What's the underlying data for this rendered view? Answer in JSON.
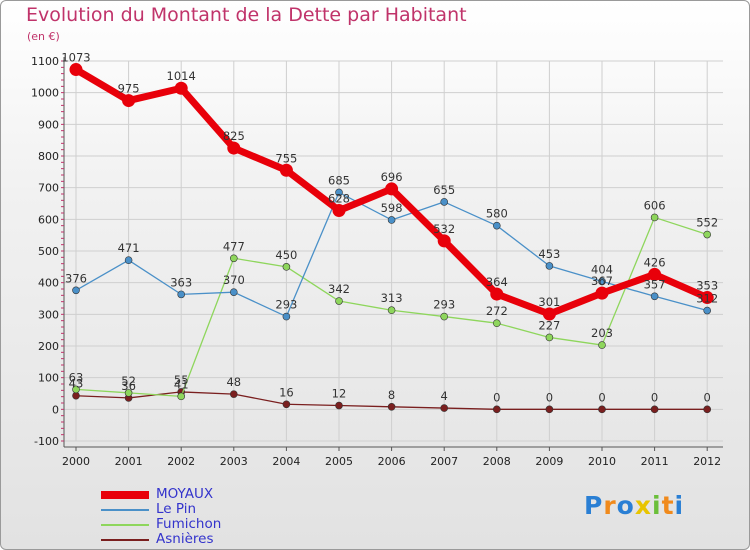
{
  "chart_data": {
    "type": "line",
    "title": "Evolution du Montant de la Dette par Habitant",
    "unit": "(en €)",
    "categories": [
      "2000",
      "2001",
      "2002",
      "2003",
      "2004",
      "2005",
      "2006",
      "2007",
      "2008",
      "2009",
      "2010",
      "2011",
      "2012"
    ],
    "ylim": [
      -100,
      1100
    ],
    "yticks": [
      "-100",
      "0",
      "100",
      "200",
      "300",
      "400",
      "500",
      "600",
      "700",
      "800",
      "900",
      "1000",
      "1100"
    ],
    "grid": true,
    "legend_position": "bottom-left",
    "series": [
      {
        "name": "MOYAUX",
        "color": "#e8000a",
        "text_color": "#3333cc",
        "values": [
          1073,
          975,
          1014,
          825,
          755,
          628,
          696,
          532,
          364,
          301,
          367,
          426,
          353
        ],
        "labels": [
          "1073",
          "975",
          "1014",
          "825",
          "755",
          "628",
          "696",
          "532",
          "364",
          "301",
          "367",
          "426",
          "353"
        ]
      },
      {
        "name": "Le Pin",
        "color": "#4a90c8",
        "text_color": "#3333cc",
        "values": [
          376,
          471,
          363,
          370,
          293,
          685,
          598,
          655,
          580,
          453,
          404,
          357,
          312
        ],
        "labels": [
          "376",
          "471",
          "363",
          "370",
          "293",
          "685",
          "598",
          "655",
          "580",
          "453",
          "404",
          "357",
          "312"
        ]
      },
      {
        "name": "Fumichon",
        "color": "#8ed65c",
        "text_color": "#3333cc",
        "values": [
          63,
          52,
          41,
          477,
          450,
          342,
          313,
          293,
          272,
          227,
          203,
          606,
          552
        ],
        "labels": [
          "63",
          "52",
          "41",
          "477",
          "450",
          "342",
          "313",
          "293",
          "272",
          "227",
          "203",
          "606",
          "552"
        ]
      },
      {
        "name": "Asnières",
        "color": "#7a1f1f",
        "text_color": "#3333cc",
        "values": [
          43,
          36,
          55,
          48,
          16,
          12,
          8,
          4,
          0,
          0,
          0,
          0,
          0
        ],
        "labels": [
          "43",
          "36",
          "55",
          "48",
          "16",
          "12",
          "8",
          "4",
          "0",
          "0",
          "0",
          "0",
          "0"
        ]
      }
    ]
  },
  "logo": {
    "letters": [
      "P",
      "r",
      "o",
      "x",
      "i",
      "t",
      "i"
    ],
    "colors": [
      "#2a7fd4",
      "#f08a1c",
      "#2a7fd4",
      "#e8c400",
      "#6bbf3a",
      "#f08a1c",
      "#2a7fd4"
    ]
  }
}
